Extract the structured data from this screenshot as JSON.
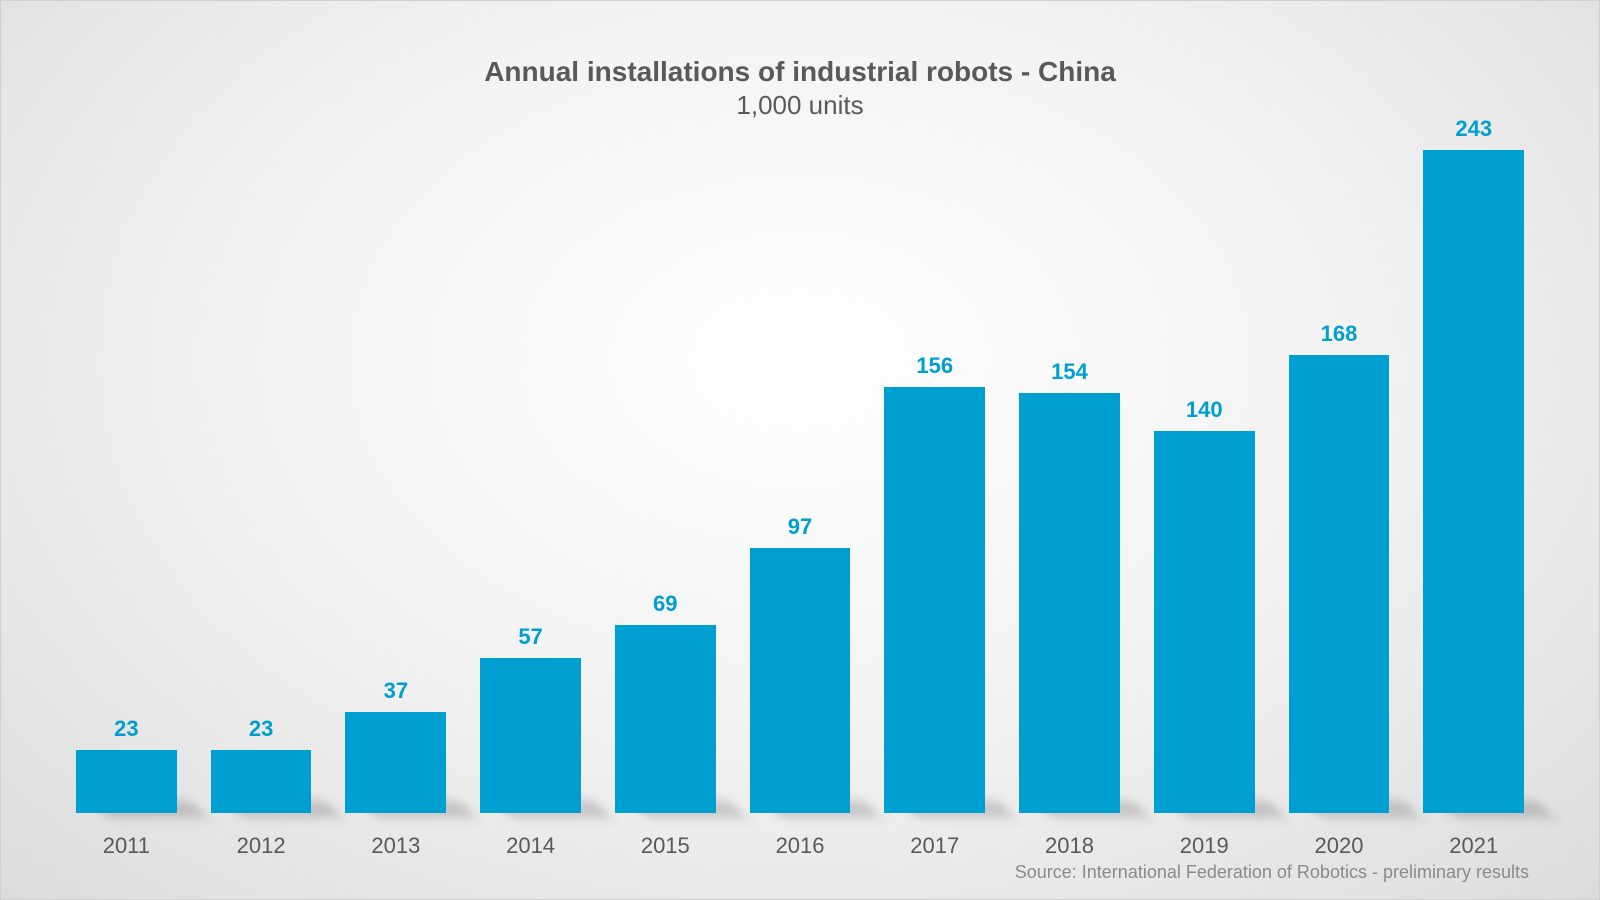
{
  "chart": {
    "type": "bar",
    "title": "Annual installations of industrial robots - China",
    "subtitle": "1,000 units",
    "title_fontsize": 28,
    "subtitle_fontsize": 26,
    "title_color": "#595959",
    "categories": [
      "2011",
      "2012",
      "2013",
      "2014",
      "2015",
      "2016",
      "2017",
      "2018",
      "2019",
      "2020",
      "2021"
    ],
    "values": [
      23,
      23,
      37,
      57,
      69,
      97,
      156,
      154,
      140,
      168,
      243
    ],
    "value_labels": [
      "23",
      "23",
      "37",
      "57",
      "69",
      "97",
      "156",
      "154",
      "140",
      "168",
      "243"
    ],
    "bar_color": "#009fd1",
    "value_label_color": "#009fd1",
    "category_label_color": "#595959",
    "label_fontsize": 22,
    "y_max": 250,
    "bar_width_ratio": 0.78,
    "background_gradient": [
      "#ffffff",
      "#f2f2f2",
      "#dcdcdc"
    ],
    "border_color": "#d0d0d0",
    "shadow_color": "rgba(0,0,0,0.18)",
    "source_text": "Source: International Federation of Robotics - preliminary results",
    "source_color": "#8a8a8a",
    "source_fontsize": 18
  }
}
